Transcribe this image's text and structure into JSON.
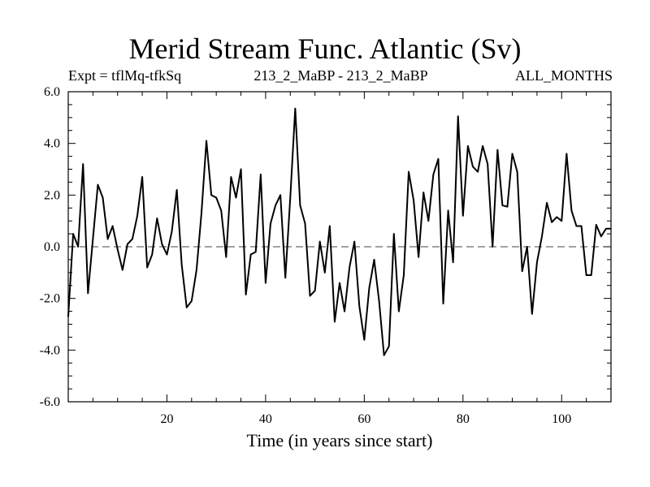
{
  "chart_data": {
    "type": "line",
    "title": "Merid Stream Func. Atlantic (Sv)",
    "subtitle_left": "Expt = tflMq-tfkSq",
    "subtitle_center": "213_2_MaBP - 213_2_MaBP",
    "subtitle_right": "ALL_MONTHS",
    "xlabel": "Time (in years since start)",
    "ylabel": "",
    "xlim": [
      0,
      110
    ],
    "ylim": [
      -6,
      6
    ],
    "x_ticks": [
      20,
      40,
      60,
      80,
      100
    ],
    "x_tick_labels": [
      "20",
      "40",
      "60",
      "80",
      "100"
    ],
    "y_ticks": [
      -6,
      -4,
      -2,
      0,
      2,
      4,
      6
    ],
    "y_tick_labels": [
      "-6.0",
      "-4.0",
      "-2.0",
      "0.0",
      "2.0",
      "4.0",
      "6.0"
    ],
    "reference_line": {
      "y": 0,
      "style": "dashed"
    },
    "series": [
      {
        "name": "Merid Stream Func.",
        "x": [
          0,
          1,
          2,
          3,
          4,
          5,
          6,
          7,
          8,
          9,
          10,
          11,
          12,
          13,
          14,
          15,
          16,
          17,
          18,
          19,
          20,
          21,
          22,
          23,
          24,
          25,
          26,
          27,
          28,
          29,
          30,
          31,
          32,
          33,
          34,
          35,
          36,
          37,
          38,
          39,
          40,
          41,
          42,
          43,
          44,
          45,
          46,
          47,
          48,
          49,
          50,
          51,
          52,
          53,
          54,
          55,
          56,
          57,
          58,
          59,
          60,
          61,
          62,
          63,
          64,
          65,
          66,
          67,
          68,
          69,
          70,
          71,
          72,
          73,
          74,
          75,
          76,
          77,
          78,
          79,
          80,
          81,
          82,
          83,
          84,
          85,
          86,
          87,
          88,
          89,
          90,
          91,
          92,
          93,
          94,
          95,
          96,
          97,
          98,
          99,
          100,
          101,
          102,
          103,
          104,
          105,
          106,
          107,
          108,
          109,
          110
        ],
        "values": [
          -2.7,
          0.5,
          0.0,
          3.2,
          -1.8,
          0.3,
          2.4,
          1.9,
          0.3,
          0.8,
          -0.1,
          -0.9,
          0.1,
          0.3,
          1.2,
          2.7,
          -0.8,
          -0.3,
          1.1,
          0.1,
          -0.3,
          0.6,
          2.2,
          -0.7,
          -2.35,
          -2.1,
          -0.9,
          1.3,
          4.1,
          2.0,
          1.9,
          1.4,
          -0.4,
          2.7,
          1.9,
          3.0,
          -1.85,
          -0.3,
          -0.2,
          2.8,
          -1.4,
          0.9,
          1.6,
          2.0,
          -1.2,
          1.9,
          5.35,
          1.6,
          0.9,
          -1.9,
          -1.7,
          0.2,
          -1.0,
          0.8,
          -2.9,
          -1.4,
          -2.5,
          -0.8,
          0.2,
          -2.3,
          -3.6,
          -1.6,
          -0.5,
          -2.1,
          -4.2,
          -3.85,
          0.5,
          -2.5,
          -1.1,
          2.9,
          1.8,
          -0.4,
          2.1,
          1.0,
          2.8,
          3.4,
          -2.2,
          1.4,
          -0.6,
          5.05,
          1.2,
          3.9,
          3.1,
          2.9,
          3.9,
          3.2,
          0.0,
          3.75,
          1.6,
          1.55,
          3.6,
          2.9,
          -0.95,
          0.0,
          -2.6,
          -0.6,
          0.4,
          1.7,
          0.95,
          1.15,
          1.0,
          3.6,
          1.4,
          0.8,
          0.8,
          -1.1,
          -1.1,
          0.85,
          0.4,
          0.7,
          0.7
        ]
      }
    ]
  },
  "colors": {
    "line": "#000000",
    "axis": "#000000",
    "background": "#ffffff"
  }
}
